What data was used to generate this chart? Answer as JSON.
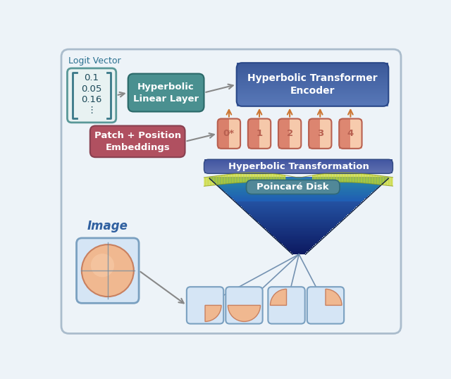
{
  "bg_color": "#edf3f8",
  "c_border_outer": "#aabccc",
  "title_logit": "Logit Vector",
  "logit_values": [
    "0.1",
    "0.05",
    "0.16",
    "⋮"
  ],
  "label_hyp_linear": "Hyperbolic\nLinear Layer",
  "label_hyp_encoder": "Hyperbolic Transformer\nEncoder",
  "label_patch_embed": "Patch + Position\nEmbeddings",
  "label_hyp_transform": "Hyperbolic Transformation",
  "label_poincare": "Poincaré Disk",
  "label_image": "Image",
  "token_labels": [
    "0*",
    "1",
    "2",
    "3",
    "4"
  ],
  "c_teal": "#4a9090",
  "c_teal_dark": "#2a6868",
  "c_blue_enc": "#4a6aaa",
  "c_blue_enc2": "#3a5a98",
  "c_blue_enc_dark": "#2a4888",
  "c_blue_trans": "#5570a8",
  "c_blue_trans2": "#3858a0",
  "c_red": "#b05060",
  "c_red_dark": "#884050",
  "c_token_border": "#b86050",
  "c_token_fill0": "#e09080",
  "c_token_fill": "#f0c0a0",
  "c_logit_border": "#5a9898",
  "c_logit_bg": "#e8f2f2",
  "c_image_bg": "#d5e5f5",
  "c_image_border": "#7aa0c0",
  "c_circle": "#f0b890",
  "c_circle_edge": "#c88060",
  "c_poincare": "#5a8898",
  "c_arrow": "#888888",
  "c_orange": "#cc7733",
  "c_line": "#6888aa",
  "c_green_surf": "#c8d828",
  "c_blue_funnel_top": "#3060a0",
  "c_blue_funnel_bot": "#102050"
}
